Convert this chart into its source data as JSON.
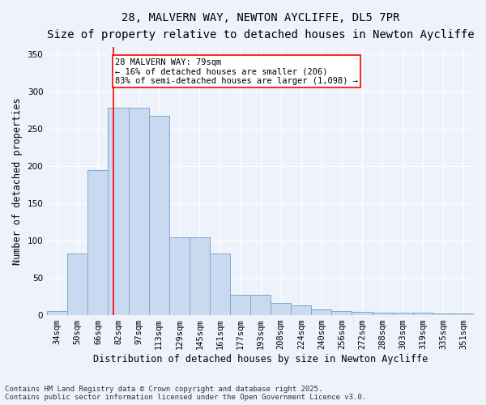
{
  "title_line1": "28, MALVERN WAY, NEWTON AYCLIFFE, DL5 7PR",
  "title_line2": "Size of property relative to detached houses in Newton Aycliffe",
  "xlabel": "Distribution of detached houses by size in Newton Aycliffe",
  "ylabel": "Number of detached properties",
  "categories": [
    "34sqm",
    "50sqm",
    "66sqm",
    "82sqm",
    "97sqm",
    "113sqm",
    "129sqm",
    "145sqm",
    "161sqm",
    "177sqm",
    "193sqm",
    "208sqm",
    "224sqm",
    "240sqm",
    "256sqm",
    "272sqm",
    "288sqm",
    "303sqm",
    "319sqm",
    "335sqm",
    "351sqm"
  ],
  "values": [
    5,
    83,
    195,
    278,
    278,
    267,
    104,
    104,
    83,
    27,
    27,
    16,
    13,
    8,
    6,
    4,
    3,
    3,
    3,
    2,
    2
  ],
  "bar_color": "#c9d9ef",
  "bar_edge_color": "#7aaad0",
  "vline_color": "red",
  "vline_x": 2.5,
  "annotation_text": "28 MALVERN WAY: 79sqm\n← 16% of detached houses are smaller (206)\n83% of semi-detached houses are larger (1,098) →",
  "annotation_box_color": "white",
  "annotation_box_edge_color": "red",
  "ylim": [
    0,
    360
  ],
  "yticks": [
    0,
    50,
    100,
    150,
    200,
    250,
    300,
    350
  ],
  "background_color": "#eef2fb",
  "footer_text": "Contains HM Land Registry data © Crown copyright and database right 2025.\nContains public sector information licensed under the Open Government Licence v3.0.",
  "title_fontsize": 10,
  "subtitle_fontsize": 9,
  "axis_label_fontsize": 8.5,
  "tick_fontsize": 7.5,
  "footer_fontsize": 6.5,
  "annot_fontsize": 7.5
}
